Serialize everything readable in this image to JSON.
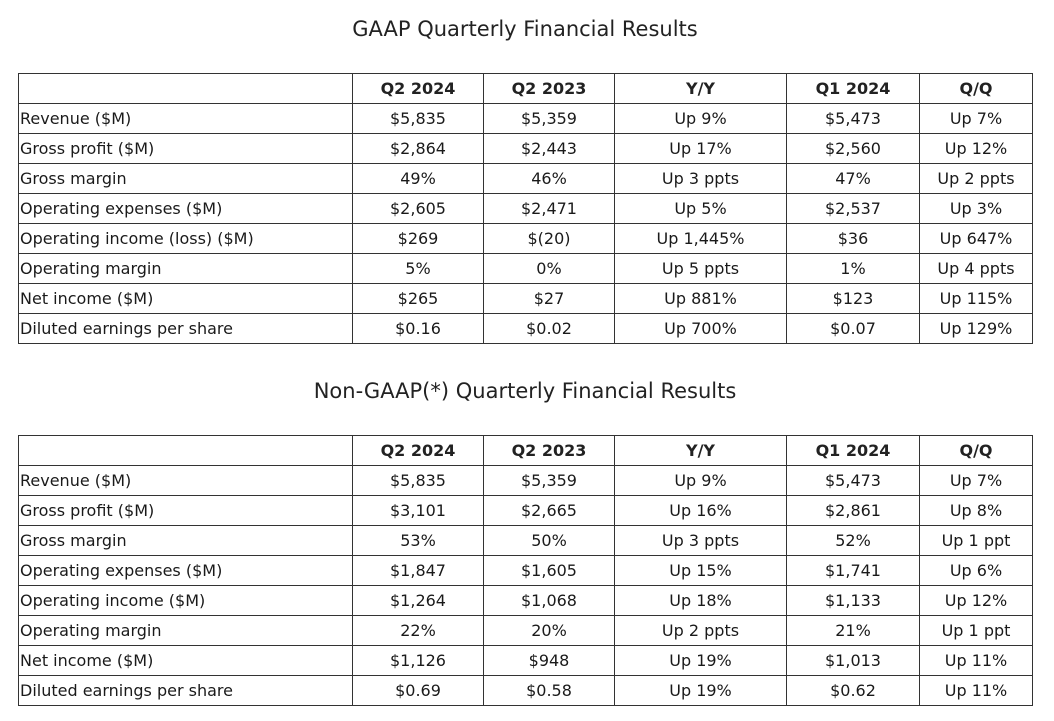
{
  "gaap": {
    "title": "GAAP Quarterly Financial Results",
    "headers": [
      "",
      "Q2 2024",
      "Q2 2023",
      "Y/Y",
      "Q1 2024",
      "Q/Q"
    ],
    "rows": [
      [
        "Revenue ($M)",
        "$5,835",
        "$5,359",
        "Up 9%",
        "$5,473",
        "Up 7%"
      ],
      [
        "Gross profit ($M)",
        "$2,864",
        "$2,443",
        "Up 17%",
        "$2,560",
        "Up 12%"
      ],
      [
        "Gross margin",
        "49%",
        "46%",
        "Up 3 ppts",
        "47%",
        "Up 2 ppts"
      ],
      [
        "Operating expenses ($M)",
        "$2,605",
        "$2,471",
        "Up 5%",
        "$2,537",
        "Up 3%"
      ],
      [
        "Operating income (loss) ($M)",
        "$269",
        "$(20)",
        "Up 1,445%",
        "$36",
        "Up 647%"
      ],
      [
        "Operating margin",
        "5%",
        "0%",
        "Up 5 ppts",
        "1%",
        "Up 4 ppts"
      ],
      [
        "Net income ($M)",
        "$265",
        "$27",
        "Up 881%",
        "$123",
        "Up 115%"
      ],
      [
        "Diluted earnings per share",
        "$0.16",
        "$0.02",
        "Up 700%",
        "$0.07",
        "Up 129%"
      ]
    ]
  },
  "nongaap": {
    "title": "Non-GAAP(*) Quarterly Financial Results",
    "headers": [
      "",
      "Q2 2024",
      "Q2 2023",
      "Y/Y",
      "Q1 2024",
      "Q/Q"
    ],
    "rows": [
      [
        "Revenue ($M)",
        "$5,835",
        "$5,359",
        "Up 9%",
        "$5,473",
        "Up 7%"
      ],
      [
        "Gross profit ($M)",
        "$3,101",
        "$2,665",
        "Up 16%",
        "$2,861",
        "Up 8%"
      ],
      [
        "Gross margin",
        "53%",
        "50%",
        "Up 3 ppts",
        "52%",
        "Up 1 ppt"
      ],
      [
        "Operating expenses ($M)",
        "$1,847",
        "$1,605",
        "Up 15%",
        "$1,741",
        "Up 6%"
      ],
      [
        "Operating income ($M)",
        "$1,264",
        "$1,068",
        "Up 18%",
        "$1,133",
        "Up 12%"
      ],
      [
        "Operating margin",
        "22%",
        "20%",
        "Up 2 ppts",
        "21%",
        "Up 1 ppt"
      ],
      [
        "Net income ($M)",
        "$1,126",
        "$948",
        "Up 19%",
        "$1,013",
        "Up 11%"
      ],
      [
        "Diluted earnings per share",
        "$0.69",
        "$0.58",
        "Up 19%",
        "$0.62",
        "Up 11%"
      ]
    ]
  }
}
